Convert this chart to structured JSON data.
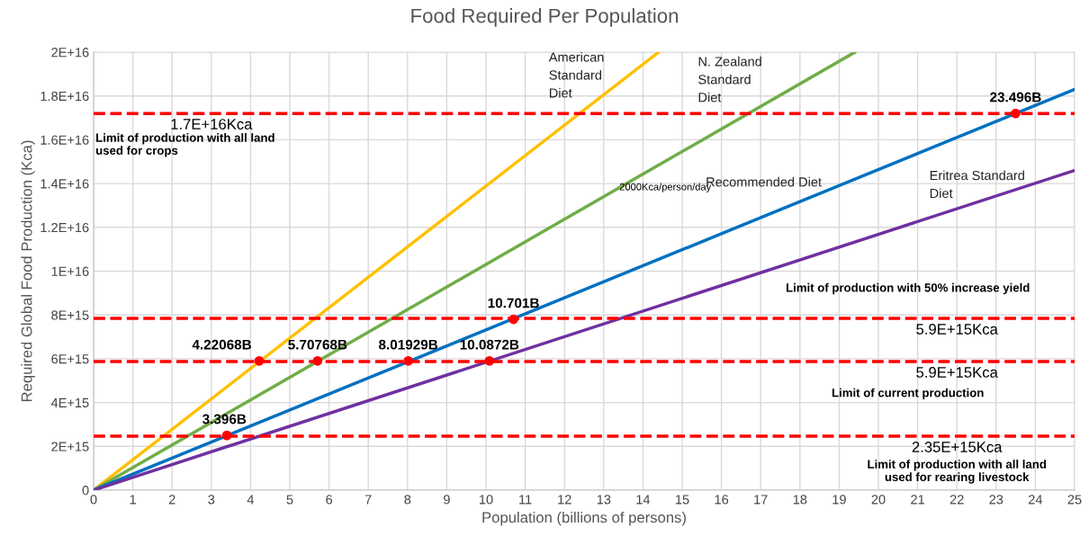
{
  "chart_data": {
    "type": "line",
    "title": "Food Required Per Population",
    "xlabel": "Population (billions of persons)",
    "ylabel": "Required Global Food Production (Kca)",
    "xlim": [
      0,
      25
    ],
    "xticks": [
      0,
      1,
      2,
      3,
      4,
      5,
      6,
      7,
      8,
      9,
      10,
      11,
      12,
      13,
      14,
      15,
      16,
      17,
      18,
      19,
      20,
      21,
      22,
      23,
      24,
      25
    ],
    "ylim": [
      0,
      2e+16
    ],
    "yticks": [
      0,
      {
        "value": 2000000000000000.0,
        "label": "2E+15"
      },
      {
        "value": 4000000000000000.0,
        "label": "4E+15"
      },
      {
        "value": 6000000000000000.0,
        "label": "6E+15"
      },
      {
        "value": 8000000000000000.0,
        "label": "8E+15"
      },
      {
        "value": 1e+16,
        "label": "1E+16"
      },
      {
        "value": 1.2e+16,
        "label": "1.2E+16"
      },
      {
        "value": 1.4e+16,
        "label": "1.4E+16"
      },
      {
        "value": 1.6e+16,
        "label": "1.6E+16"
      },
      {
        "value": 1.8e+16,
        "label": "1.8E+16"
      },
      {
        "value": 2e+16,
        "label": "2E+16"
      }
    ],
    "grid": true,
    "legend": false,
    "series": [
      {
        "name": "American\nStandard\nDiet",
        "color": "#ffc000",
        "x": [
          0,
          14.4
        ],
        "values": [
          0,
          2e+16
        ]
      },
      {
        "name": "N. Zealand\nStandard\nDiet",
        "color": "#70ad47",
        "x": [
          0,
          19.4
        ],
        "values": [
          0,
          2e+16
        ]
      },
      {
        "name": "Recommended Diet",
        "color": "#0070c0",
        "x": [
          0,
          25
        ],
        "values": [
          0,
          1.83e+16
        ]
      },
      {
        "name": "Eritrea Standard\nDiet",
        "color": "#7030a0",
        "x": [
          0,
          25
        ],
        "values": [
          0,
          1.46e+16
        ]
      },
      {
        "type": "scatter",
        "color": "#ff0000",
        "marker": "circle",
        "x": [
          3.396,
          4.22068,
          5.70768,
          8.01929,
          10.0872,
          10.701,
          23.496
        ],
        "values": [
          2500000000000000.0,
          5900000000000000.0,
          5900000000000000.0,
          5900000000000000.0,
          5900000000000000.0,
          7800000000000000.0,
          1.72e+16
        ]
      }
    ],
    "ref_lines": [
      {
        "axis": "y",
        "value": 1.72e+16,
        "label": "1.7E+16Kca",
        "color": "#ff0000",
        "line_style": "dashed"
      },
      {
        "axis": "y",
        "value": 7840000000000000.0,
        "label": "5.9E+15Kca",
        "color": "#ff0000",
        "line_style": "dashed"
      },
      {
        "axis": "y",
        "value": 5870000000000000.0,
        "label": "5.9E+15Kca",
        "color": "#ff0000",
        "line_style": "dashed"
      },
      {
        "axis": "y",
        "value": 2460000000000000.0,
        "label": "2.35E+15Kca",
        "color": "#ff0000",
        "line_style": "dashed"
      }
    ],
    "annotations": [
      "2000Kca/person/day",
      "Limit of production with all land\nused for crops",
      "Limit of production with 50% increase yield",
      "Limit of current production",
      "Limit of production with all land\nused for rearing livestock",
      {
        "text": "3.396B",
        "x": 3.396,
        "y": 2500000000000000.0
      },
      {
        "text": "4.22068B",
        "x": 4.22068,
        "y": 5900000000000000.0
      },
      {
        "text": "5.70768B",
        "x": 5.70768,
        "y": 5900000000000000.0
      },
      {
        "text": "8.01929B",
        "x": 8.01929,
        "y": 5900000000000000.0
      },
      {
        "text": "10.0872B",
        "x": 10.0872,
        "y": 5900000000000000.0
      },
      {
        "text": "10.701B",
        "x": 10.701,
        "y": 7800000000000000.0
      },
      {
        "text": "23.496B",
        "x": 23.496,
        "y": 1.72e+16
      }
    ]
  }
}
